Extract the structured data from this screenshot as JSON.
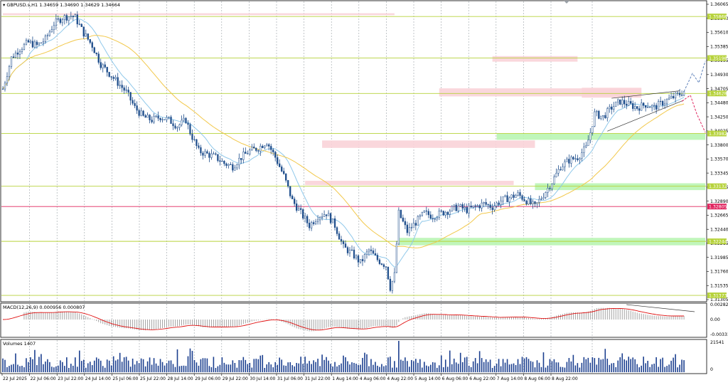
{
  "window": {
    "symbol_line": "GBPUSD.s,H1  1.34659 1.34690 1.34629 1.34664"
  },
  "colors": {
    "grid": "#9aa0a6",
    "level_green": "#b6d23a",
    "level_red": "#e0245e",
    "zone_red": "#f9d3d8",
    "zone_green": "#b9f5b3",
    "ma_fast": "#8fc8ea",
    "ma_slow": "#f2c84b",
    "price": "#1f4e8c",
    "macd_signal": "#e01010",
    "macd_hist": "#9a9a9a",
    "volume": "#1b3f8f",
    "forecast_up": "#5b7fb9",
    "forecast_down": "#e0245e"
  },
  "price_axis": {
    "ticks": [
      "1.36065",
      "1.35840",
      "1.35610",
      "1.35385",
      "1.35155",
      "1.34930",
      "1.34705",
      "1.34480",
      "1.34250",
      "1.34025",
      "1.33800",
      "1.33570",
      "1.33345",
      "1.33115",
      "1.32890",
      "1.32665",
      "1.32440",
      "1.32215",
      "1.31985",
      "1.31760",
      "1.31535",
      "1.31305"
    ],
    "level_labels": [
      {
        "text": "1.35868",
        "value": 1.35868,
        "color": "#b6d23a"
      },
      {
        "text": "1.35198",
        "value": 1.35198,
        "color": "#b6d23a"
      },
      {
        "text": "1.34628",
        "value": 1.34628,
        "color": "#b6d23a"
      },
      {
        "text": "1.33982",
        "value": 1.33982,
        "color": "#b6d23a"
      },
      {
        "text": "1.33132",
        "value": 1.33132,
        "color": "#b6d23a"
      },
      {
        "text": "1.32805",
        "value": 1.32805,
        "color": "#e0245e"
      },
      {
        "text": "1.32244",
        "value": 1.32244,
        "color": "#b6d23a"
      },
      {
        "text": "1.31373",
        "value": 1.31373,
        "color": "#b6d23a"
      }
    ]
  },
  "macd": {
    "label": "MACD(12,26,9) 0.000956 0.000807",
    "axis_ticks": [
      "0.002828",
      "0.00",
      "-0.003318"
    ]
  },
  "volumes": {
    "label": "Volumes 1407",
    "axis_ticks": [
      "21541",
      "0"
    ]
  },
  "time_axis": {
    "labels": [
      "22 Jul 2025",
      "22 Jul 06:00",
      "23 Jul 22:00",
      "24 Jul 14:00",
      "25 Jul 06:00",
      "25 Jul 22:00",
      "28 Jul 14:00",
      "29 Jul 06:00",
      "29 Jul 22:00",
      "30 Jul 14:00",
      "31 Jul 06:00",
      "31 Jul 22:00",
      "1 Aug 14:00",
      "4 Aug 06:00",
      "4 Aug 22:00",
      "5 Aug 14:00",
      "6 Aug 06:00",
      "6 Aug 22:00",
      "7 Aug 14:00",
      "8 Aug 06:00",
      "8 Aug 22:00"
    ]
  },
  "chart_data": {
    "type": "candlestick",
    "symbol": "GBPUSD.s",
    "timeframe": "H1",
    "ylim": [
      1.31305,
      1.36065
    ],
    "ohlc_last": {
      "open": 1.34659,
      "high": 1.3469,
      "low": 1.34629,
      "close": 1.34664
    },
    "horizontal_levels": [
      1.35868,
      1.35198,
      1.34628,
      1.33982,
      1.33132,
      1.32805,
      1.32244,
      1.31373
    ],
    "close_path": [
      [
        0,
        1.347
      ],
      [
        4,
        1.352
      ],
      [
        8,
        1.3535
      ],
      [
        12,
        1.3545
      ],
      [
        16,
        1.354
      ],
      [
        20,
        1.355
      ],
      [
        24,
        1.3575
      ],
      [
        28,
        1.3585
      ],
      [
        32,
        1.3588
      ],
      [
        34,
        1.3585
      ],
      [
        38,
        1.356
      ],
      [
        42,
        1.354
      ],
      [
        46,
        1.351
      ],
      [
        50,
        1.3495
      ],
      [
        54,
        1.348
      ],
      [
        58,
        1.3465
      ],
      [
        62,
        1.344
      ],
      [
        66,
        1.3425
      ],
      [
        70,
        1.342
      ],
      [
        74,
        1.3425
      ],
      [
        78,
        1.342
      ],
      [
        82,
        1.341
      ],
      [
        86,
        1.342
      ],
      [
        88,
        1.34
      ],
      [
        92,
        1.337
      ],
      [
        96,
        1.3365
      ],
      [
        100,
        1.336
      ],
      [
        104,
        1.335
      ],
      [
        108,
        1.3345
      ],
      [
        112,
        1.336
      ],
      [
        116,
        1.337
      ],
      [
        120,
        1.3375
      ],
      [
        124,
        1.3385
      ],
      [
        128,
        1.336
      ],
      [
        132,
        1.333
      ],
      [
        136,
        1.329
      ],
      [
        140,
        1.327
      ],
      [
        144,
        1.325
      ],
      [
        148,
        1.3265
      ],
      [
        152,
        1.327
      ],
      [
        156,
        1.325
      ],
      [
        160,
        1.3215
      ],
      [
        164,
        1.3205
      ],
      [
        168,
        1.319
      ],
      [
        172,
        1.321
      ],
      [
        176,
        1.3195
      ],
      [
        180,
        1.3185
      ],
      [
        182,
        1.315
      ],
      [
        184,
        1.317
      ],
      [
        186,
        1.327
      ],
      [
        190,
        1.324
      ],
      [
        194,
        1.3255
      ],
      [
        198,
        1.327
      ],
      [
        202,
        1.3265
      ],
      [
        206,
        1.327
      ],
      [
        210,
        1.3275
      ],
      [
        214,
        1.328
      ],
      [
        218,
        1.3275
      ],
      [
        222,
        1.328
      ],
      [
        226,
        1.3285
      ],
      [
        230,
        1.328
      ],
      [
        234,
        1.329
      ],
      [
        238,
        1.3295
      ],
      [
        242,
        1.33
      ],
      [
        246,
        1.329
      ],
      [
        250,
        1.328
      ],
      [
        254,
        1.33
      ],
      [
        258,
        1.332
      ],
      [
        262,
        1.3345
      ],
      [
        266,
        1.3355
      ],
      [
        270,
        1.336
      ],
      [
        274,
        1.3375
      ],
      [
        276,
        1.34
      ],
      [
        278,
        1.343
      ],
      [
        282,
        1.3425
      ],
      [
        286,
        1.344
      ],
      [
        290,
        1.345
      ],
      [
        294,
        1.3445
      ],
      [
        298,
        1.344
      ],
      [
        302,
        1.3445
      ],
      [
        306,
        1.344
      ],
      [
        310,
        1.3448
      ],
      [
        314,
        1.3455
      ],
      [
        318,
        1.3462
      ],
      [
        320,
        1.3466
      ]
    ],
    "forecast_up": [
      1.3466,
      1.3495,
      1.348,
      1.3515
    ],
    "forecast_down": [
      1.345,
      1.346,
      1.343,
      1.34
    ]
  }
}
